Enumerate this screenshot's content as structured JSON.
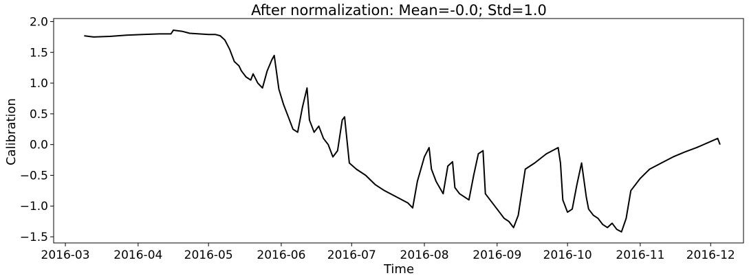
{
  "chart_data": {
    "type": "line",
    "title": "After normalization: Mean=-0.0; Std=1.0",
    "xlabel": "Time",
    "ylabel": "Calibration",
    "xlim": [
      "2016-02-25",
      "2016-12-15"
    ],
    "ylim": [
      -1.6,
      2.05
    ],
    "x_ticks": [
      "2016-03",
      "2016-04",
      "2016-05",
      "2016-06",
      "2016-07",
      "2016-08",
      "2016-09",
      "2016-10",
      "2016-11",
      "2016-12"
    ],
    "y_ticks": [
      2.0,
      1.5,
      1.0,
      0.5,
      0.0,
      -0.5,
      -1.0,
      -1.5
    ],
    "y_tick_labels": [
      "2.0",
      "1.5",
      "1.0",
      "0.5",
      "0.0",
      "−0.5",
      "−1.0",
      "−1.5"
    ],
    "grid": false,
    "line_color": "#000000",
    "series": [
      {
        "x": [
          "2016-03-09",
          "2016-03-13",
          "2016-03-20",
          "2016-03-27",
          "2016-04-03",
          "2016-04-10",
          "2016-04-15",
          "2016-04-16",
          "2016-04-20",
          "2016-04-22",
          "2016-04-23",
          "2016-04-27",
          "2016-05-01",
          "2016-05-04",
          "2016-05-06",
          "2016-05-08",
          "2016-05-10",
          "2016-05-12",
          "2016-05-14",
          "2016-05-15",
          "2016-05-17",
          "2016-05-19",
          "2016-05-20",
          "2016-05-22",
          "2016-05-24",
          "2016-05-26",
          "2016-05-28",
          "2016-05-29",
          "2016-05-31",
          "2016-06-02",
          "2016-06-04",
          "2016-06-06",
          "2016-06-08",
          "2016-06-10",
          "2016-06-12",
          "2016-06-13",
          "2016-06-15",
          "2016-06-17",
          "2016-06-19",
          "2016-06-21",
          "2016-06-23",
          "2016-06-25",
          "2016-06-27",
          "2016-06-28",
          "2016-06-30",
          "2016-07-03",
          "2016-07-07",
          "2016-07-11",
          "2016-07-15",
          "2016-07-20",
          "2016-07-25",
          "2016-07-27",
          "2016-07-29",
          "2016-08-01",
          "2016-08-03",
          "2016-08-04",
          "2016-08-06",
          "2016-08-09",
          "2016-08-11",
          "2016-08-13",
          "2016-08-14",
          "2016-08-16",
          "2016-08-18",
          "2016-08-20",
          "2016-08-22",
          "2016-08-24",
          "2016-08-26",
          "2016-08-27",
          "2016-08-30",
          "2016-09-02",
          "2016-09-04",
          "2016-09-06",
          "2016-09-08",
          "2016-09-10",
          "2016-09-13",
          "2016-09-17",
          "2016-09-22",
          "2016-09-27",
          "2016-09-28",
          "2016-09-29",
          "2016-10-01",
          "2016-10-03",
          "2016-10-05",
          "2016-10-07",
          "2016-10-09",
          "2016-10-10",
          "2016-10-12",
          "2016-10-14",
          "2016-10-16",
          "2016-10-18",
          "2016-10-20",
          "2016-10-22",
          "2016-10-24",
          "2016-10-26",
          "2016-10-28",
          "2016-11-01",
          "2016-11-05",
          "2016-11-10",
          "2016-11-15",
          "2016-11-20",
          "2016-11-25",
          "2016-12-01",
          "2016-12-04",
          "2016-12-05"
        ],
        "y": [
          1.77,
          1.75,
          1.76,
          1.78,
          1.79,
          1.8,
          1.8,
          1.86,
          1.84,
          1.82,
          1.81,
          1.8,
          1.79,
          1.79,
          1.77,
          1.7,
          1.55,
          1.35,
          1.28,
          1.2,
          1.1,
          1.05,
          1.15,
          1.0,
          0.92,
          1.2,
          1.38,
          1.45,
          0.9,
          0.65,
          0.45,
          0.25,
          0.2,
          0.6,
          0.92,
          0.4,
          0.2,
          0.3,
          0.1,
          0.0,
          -0.2,
          -0.1,
          0.4,
          0.45,
          -0.3,
          -0.4,
          -0.5,
          -0.65,
          -0.75,
          -0.85,
          -0.95,
          -1.03,
          -0.6,
          -0.2,
          -0.05,
          -0.4,
          -0.6,
          -0.8,
          -0.35,
          -0.28,
          -0.7,
          -0.8,
          -0.85,
          -0.9,
          -0.5,
          -0.15,
          -0.1,
          -0.8,
          -0.95,
          -1.1,
          -1.2,
          -1.25,
          -1.35,
          -1.15,
          -0.4,
          -0.3,
          -0.15,
          -0.05,
          -0.3,
          -0.9,
          -1.1,
          -1.05,
          -0.65,
          -0.3,
          -0.85,
          -1.05,
          -1.15,
          -1.2,
          -1.3,
          -1.35,
          -1.28,
          -1.38,
          -1.42,
          -1.2,
          -0.75,
          -0.55,
          -0.4,
          -0.3,
          -0.2,
          -0.12,
          -0.05,
          0.05,
          0.1,
          0.0
        ]
      }
    ]
  }
}
